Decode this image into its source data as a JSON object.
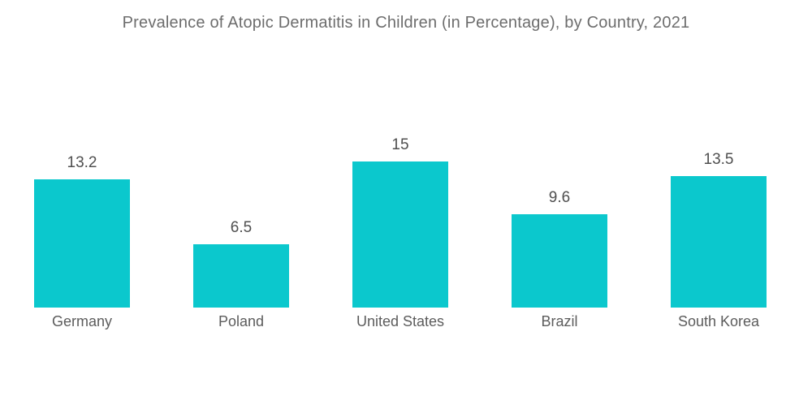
{
  "title": "Prevalence of Atopic Dermatitis in Children (in Percentage), by Country, 2021",
  "colors": {
    "bar": "#0bc8cd",
    "title_text": "#6d6d6d",
    "value_text": "#4f4f4f",
    "category_text": "#5c5c5c",
    "background": "#ffffff"
  },
  "chart_data": {
    "type": "bar",
    "title": "Prevalence of Atopic Dermatitis in Children (in Percentage), by Country, 2021",
    "categories": [
      "Germany",
      "Poland",
      "United States",
      "Brazil",
      "South Korea"
    ],
    "values": [
      13.2,
      6.5,
      15,
      9.6,
      13.5
    ],
    "value_labels": [
      "13.2",
      "6.5",
      "15",
      "9.6",
      "13.5"
    ],
    "xlabel": "",
    "ylabel": "",
    "ylim": [
      0,
      15
    ],
    "grid": false,
    "legend": false,
    "axis_lines": false,
    "bar_color": "#0bc8cd",
    "value_label_position": "above-bar",
    "category_label_position": "below-bar"
  }
}
